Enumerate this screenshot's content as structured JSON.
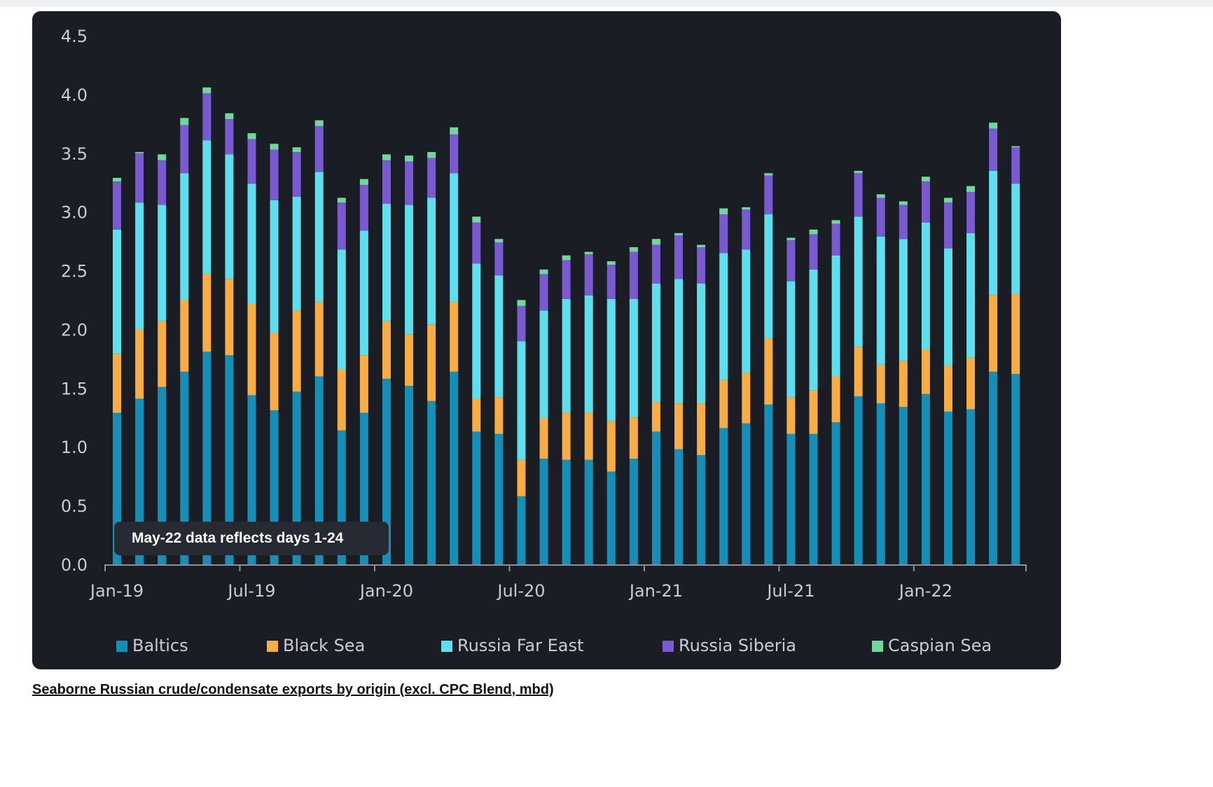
{
  "caption": "Seaborne Russian crude/condensate exports by origin (excl. CPC Blend, mbd)",
  "chart_data": {
    "type": "bar",
    "stacked": true,
    "title": "",
    "xlabel": "",
    "ylabel": "",
    "ylim": [
      0,
      4.5
    ],
    "yticks": [
      "0.0",
      "0.5",
      "1.0",
      "1.5",
      "2.0",
      "2.5",
      "3.0",
      "3.5",
      "4.0",
      "4.5"
    ],
    "grid": false,
    "legend_position": "bottom",
    "annotation": "May-22 data reflects days 1-24",
    "categories": [
      "Jan-19",
      "Feb-19",
      "Mar-19",
      "Apr-19",
      "May-19",
      "Jun-19",
      "Jul-19",
      "Aug-19",
      "Sep-19",
      "Oct-19",
      "Nov-19",
      "Dec-19",
      "Jan-20",
      "Feb-20",
      "Mar-20",
      "Apr-20",
      "May-20",
      "Jun-20",
      "Jul-20",
      "Aug-20",
      "Sep-20",
      "Oct-20",
      "Nov-20",
      "Dec-20",
      "Jan-21",
      "Feb-21",
      "Mar-21",
      "Apr-21",
      "May-21",
      "Jun-21",
      "Jul-21",
      "Aug-21",
      "Sep-21",
      "Oct-21",
      "Nov-21",
      "Dec-21",
      "Jan-22",
      "Feb-22",
      "Mar-22",
      "Apr-22",
      "May-22"
    ],
    "xtick_labels": [
      "Jan-19",
      "Jul-19",
      "Jan-20",
      "Jul-20",
      "Jan-21",
      "Jul-21",
      "Jan-22"
    ],
    "series": [
      {
        "name": "Baltics",
        "color": "#1490b8",
        "values": [
          1.29,
          1.41,
          1.51,
          1.64,
          1.81,
          1.78,
          1.44,
          1.31,
          1.47,
          1.6,
          1.14,
          1.29,
          1.58,
          1.52,
          1.39,
          1.64,
          1.13,
          1.11,
          0.58,
          0.9,
          0.89,
          0.89,
          0.79,
          0.9,
          1.13,
          0.98,
          0.93,
          1.16,
          1.2,
          1.36,
          1.11,
          1.11,
          1.21,
          1.43,
          1.37,
          1.34,
          1.45,
          1.3,
          1.32,
          1.64,
          1.62
        ]
      },
      {
        "name": "Black Sea",
        "color": "#f8ad42",
        "values": [
          0.5,
          0.59,
          0.56,
          0.61,
          0.66,
          0.65,
          0.78,
          0.66,
          0.69,
          0.63,
          0.52,
          0.49,
          0.49,
          0.44,
          0.65,
          0.59,
          0.28,
          0.31,
          0.31,
          0.34,
          0.4,
          0.4,
          0.43,
          0.35,
          0.25,
          0.39,
          0.44,
          0.41,
          0.43,
          0.56,
          0.31,
          0.37,
          0.39,
          0.42,
          0.33,
          0.39,
          0.38,
          0.39,
          0.44,
          0.65,
          0.68
        ]
      },
      {
        "name": "Russia Far East",
        "color": "#5ce0ee",
        "values": [
          1.06,
          1.08,
          0.99,
          1.08,
          1.14,
          1.06,
          1.02,
          1.13,
          0.97,
          1.11,
          1.02,
          1.06,
          1.0,
          1.1,
          1.08,
          1.1,
          1.15,
          1.04,
          1.01,
          0.92,
          0.97,
          1.0,
          1.04,
          1.01,
          1.01,
          1.06,
          1.02,
          1.08,
          1.05,
          1.06,
          0.99,
          1.03,
          1.03,
          1.11,
          1.09,
          1.04,
          1.08,
          1.0,
          1.06,
          1.06,
          0.94
        ]
      },
      {
        "name": "Russia Siberia",
        "color": "#7a5ad0",
        "values": [
          0.41,
          0.42,
          0.38,
          0.41,
          0.4,
          0.3,
          0.38,
          0.43,
          0.38,
          0.39,
          0.4,
          0.39,
          0.37,
          0.37,
          0.34,
          0.33,
          0.35,
          0.28,
          0.3,
          0.31,
          0.33,
          0.35,
          0.29,
          0.4,
          0.33,
          0.37,
          0.31,
          0.33,
          0.34,
          0.33,
          0.35,
          0.3,
          0.27,
          0.37,
          0.33,
          0.29,
          0.35,
          0.39,
          0.35,
          0.36,
          0.31
        ]
      },
      {
        "name": "Caspian Sea",
        "color": "#6fd99a",
        "values": [
          0.03,
          0.01,
          0.05,
          0.06,
          0.05,
          0.05,
          0.05,
          0.05,
          0.04,
          0.05,
          0.04,
          0.05,
          0.05,
          0.05,
          0.05,
          0.06,
          0.05,
          0.03,
          0.05,
          0.04,
          0.04,
          0.02,
          0.03,
          0.04,
          0.05,
          0.02,
          0.02,
          0.05,
          0.02,
          0.02,
          0.02,
          0.04,
          0.03,
          0.02,
          0.03,
          0.03,
          0.04,
          0.04,
          0.05,
          0.05,
          0.01
        ]
      }
    ]
  }
}
